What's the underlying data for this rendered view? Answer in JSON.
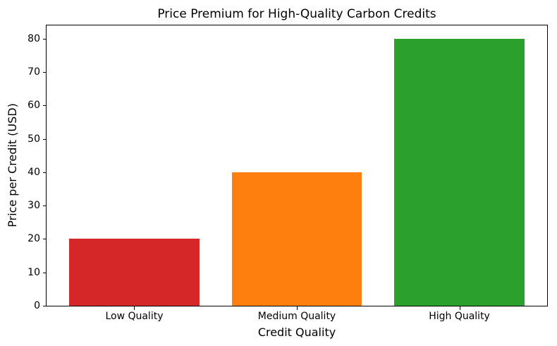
{
  "chart_data": {
    "type": "bar",
    "title": "Price Premium for High-Quality Carbon Credits",
    "xlabel": "Credit Quality",
    "ylabel": "Price per Credit (USD)",
    "categories": [
      "Low Quality",
      "Medium Quality",
      "High Quality"
    ],
    "values": [
      20,
      40,
      80
    ],
    "bar_colors": [
      "#d62728",
      "#ff7f0e",
      "#2ca02c"
    ],
    "yticks": [
      0,
      10,
      20,
      30,
      40,
      50,
      60,
      70,
      80
    ],
    "ylim": [
      0,
      84
    ],
    "grid": false,
    "legend": null,
    "axis_color": "#000000"
  }
}
